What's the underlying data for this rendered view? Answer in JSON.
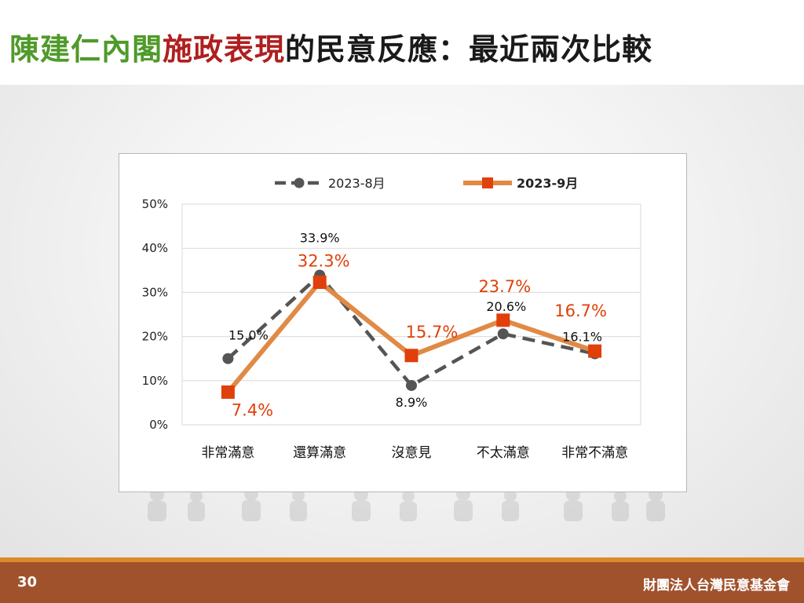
{
  "title": {
    "part1": "陳建仁內閣",
    "part2": "施政表現",
    "part3": "的民意反應：最近兩次比較"
  },
  "colors": {
    "title_green": "#4f9a2a",
    "title_red": "#b01f1f",
    "series_aug": "#555555",
    "series_sep_line": "#e08a45",
    "series_sep_marker": "#e0400a",
    "footer": "#a0522d",
    "footer_accent": "#d98a2a"
  },
  "chart_data": {
    "type": "line",
    "categories": [
      "非常滿意",
      "還算滿意",
      "沒意見",
      "不太滿意",
      "非常不滿意"
    ],
    "series": [
      {
        "name": "2023-8月",
        "values": [
          15.0,
          33.9,
          8.9,
          20.6,
          16.1
        ],
        "labels": [
          "15.0%",
          "33.9%",
          "8.9%",
          "20.6%",
          "16.1%"
        ],
        "style": "dashed",
        "marker": "circle"
      },
      {
        "name": "2023-9月",
        "values": [
          7.4,
          32.3,
          15.7,
          23.7,
          16.7
        ],
        "labels": [
          "7.4%",
          "32.3%",
          "15.7%",
          "23.7%",
          "16.7%"
        ],
        "style": "solid",
        "marker": "square"
      }
    ],
    "ylim": [
      0,
      50
    ],
    "yticks": [
      "0%",
      "10%",
      "20%",
      "30%",
      "40%",
      "50%"
    ],
    "grid": true,
    "legend": "top"
  },
  "footer": {
    "page_number": "30",
    "organization": "財團法人台灣民意基金會"
  }
}
